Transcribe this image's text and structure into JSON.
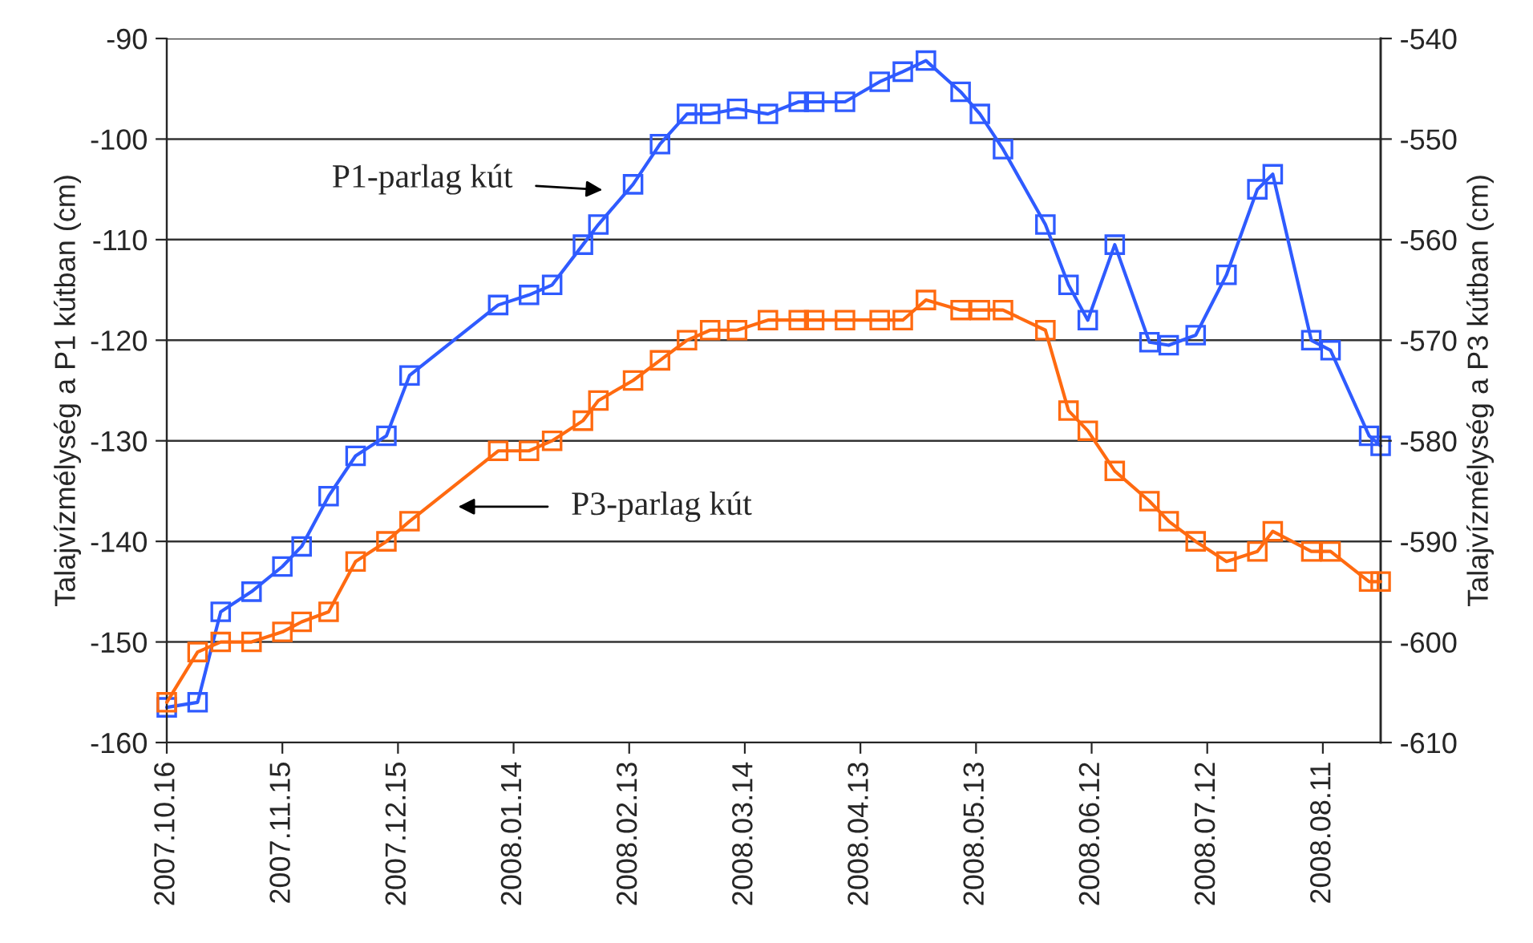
{
  "chart_data": {
    "type": "line",
    "ylabel": "Talajvízmélység a P1 kútban (cm)",
    "y2label": "Talajvízmélység a P3 kútban (cm)",
    "x": [
      "2007-10-16",
      "2007-10-24",
      "2007-10-30",
      "2007-11-07",
      "2007-11-15",
      "2007-11-20",
      "2007-11-27",
      "2007-12-04",
      "2007-12-12",
      "2007-12-18",
      "2008-01-10",
      "2008-01-18",
      "2008-01-24",
      "2008-02-01",
      "2008-02-05",
      "2008-02-14",
      "2008-02-21",
      "2008-02-28",
      "2008-03-05",
      "2008-03-12",
      "2008-03-20",
      "2008-03-28",
      "2008-04-01",
      "2008-04-09",
      "2008-04-18",
      "2008-04-24",
      "2008-04-30",
      "2008-05-09",
      "2008-05-14",
      "2008-05-20",
      "2008-05-31",
      "2008-06-06",
      "2008-06-11",
      "2008-06-18",
      "2008-06-27",
      "2008-07-02",
      "2008-07-09",
      "2008-07-17",
      "2008-07-25",
      "2008-07-29",
      "2008-08-08",
      "2008-08-13",
      "2008-08-23",
      "2008-08-26"
    ],
    "series": [
      {
        "color": "#2f5bff",
        "values": [
          -156.5,
          -156,
          -147,
          -145,
          -142.5,
          -140.5,
          -135.5,
          -131.5,
          -129.5,
          -123.5,
          -116.5,
          -115.5,
          -114.5,
          -110.5,
          -108.5,
          -104.5,
          -100.5,
          -97.5,
          -97.5,
          -97,
          -97.5,
          -96.3,
          -96.3,
          -96.3,
          -94.3,
          -93.3,
          -92.2,
          -95.3,
          -97.5,
          -101,
          -108.5,
          -114.5,
          -118,
          -110.5,
          -120.2,
          -120.5,
          -119.5,
          -113.5,
          -105,
          -103.5,
          -120,
          -121,
          -129.5,
          -130.5
        ]
      },
      {
        "color": "#ff6a10",
        "axis": "y2",
        "values": [
          -606,
          -601,
          -600,
          -600,
          -599,
          -598,
          -597,
          -592,
          -590,
          -588,
          -581,
          -581,
          -580,
          -578,
          -576,
          -574,
          -572,
          -570,
          -569,
          -569,
          -568,
          -568,
          -568,
          -568,
          -568,
          -568,
          -566,
          -567,
          -567,
          -567,
          -569,
          -577,
          -579,
          -583,
          -586,
          -588,
          -590,
          -592,
          -591,
          -589,
          -591,
          -591,
          -594,
          -594
        ]
      }
    ],
    "xlim": [
      "2007-10-16",
      "2008-08-26"
    ],
    "xticks": [
      {
        "value": "2007-10-16",
        "label": "2007.10.16"
      },
      {
        "value": "2007-11-15",
        "label": "2007.11.15"
      },
      {
        "value": "2007-12-15",
        "label": "2007.12.15"
      },
      {
        "value": "2008-01-14",
        "label": "2008.01.14"
      },
      {
        "value": "2008-02-13",
        "label": "2008.02.13"
      },
      {
        "value": "2008-03-14",
        "label": "2008.03.14"
      },
      {
        "value": "2008-04-13",
        "label": "2008.04.13"
      },
      {
        "value": "2008-05-13",
        "label": "2008.05.13"
      },
      {
        "value": "2008-06-12",
        "label": "2008.06.12"
      },
      {
        "value": "2008-07-12",
        "label": "2008.07.12"
      },
      {
        "value": "2008-08-11",
        "label": "2008.08.11"
      }
    ],
    "ylim": [
      -160,
      -90
    ],
    "yticks": [
      -160,
      -150,
      -140,
      -130,
      -120,
      -110,
      -100,
      -90
    ],
    "y2lim": [
      -610,
      -540
    ],
    "y2ticks": [
      -610,
      -600,
      -590,
      -580,
      -570,
      -560,
      -550,
      -540
    ],
    "annotations": [
      "P1-parlag kút",
      "P3-parlag kút"
    ],
    "grid": "y",
    "marker": "square",
    "line_style": "solid",
    "legend": false
  }
}
